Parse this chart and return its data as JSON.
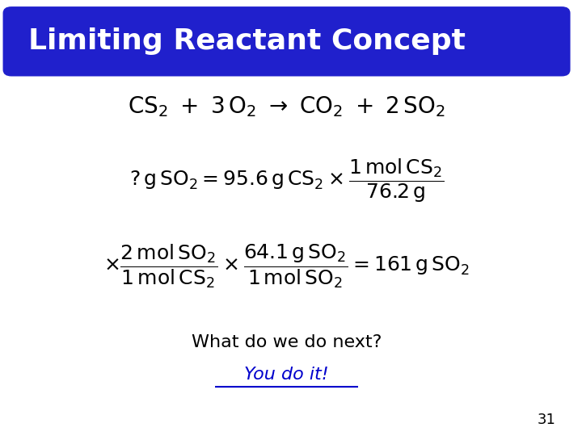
{
  "title": "Limiting Reactant Concept",
  "title_bg_color": "#2020CC",
  "title_text_color": "#FFFFFF",
  "bg_color": "#FFFFFF",
  "slide_number": "31",
  "what_text": "What do we do next?",
  "you_text": "You do it!",
  "text_color": "#000000",
  "you_color": "#0000CC"
}
